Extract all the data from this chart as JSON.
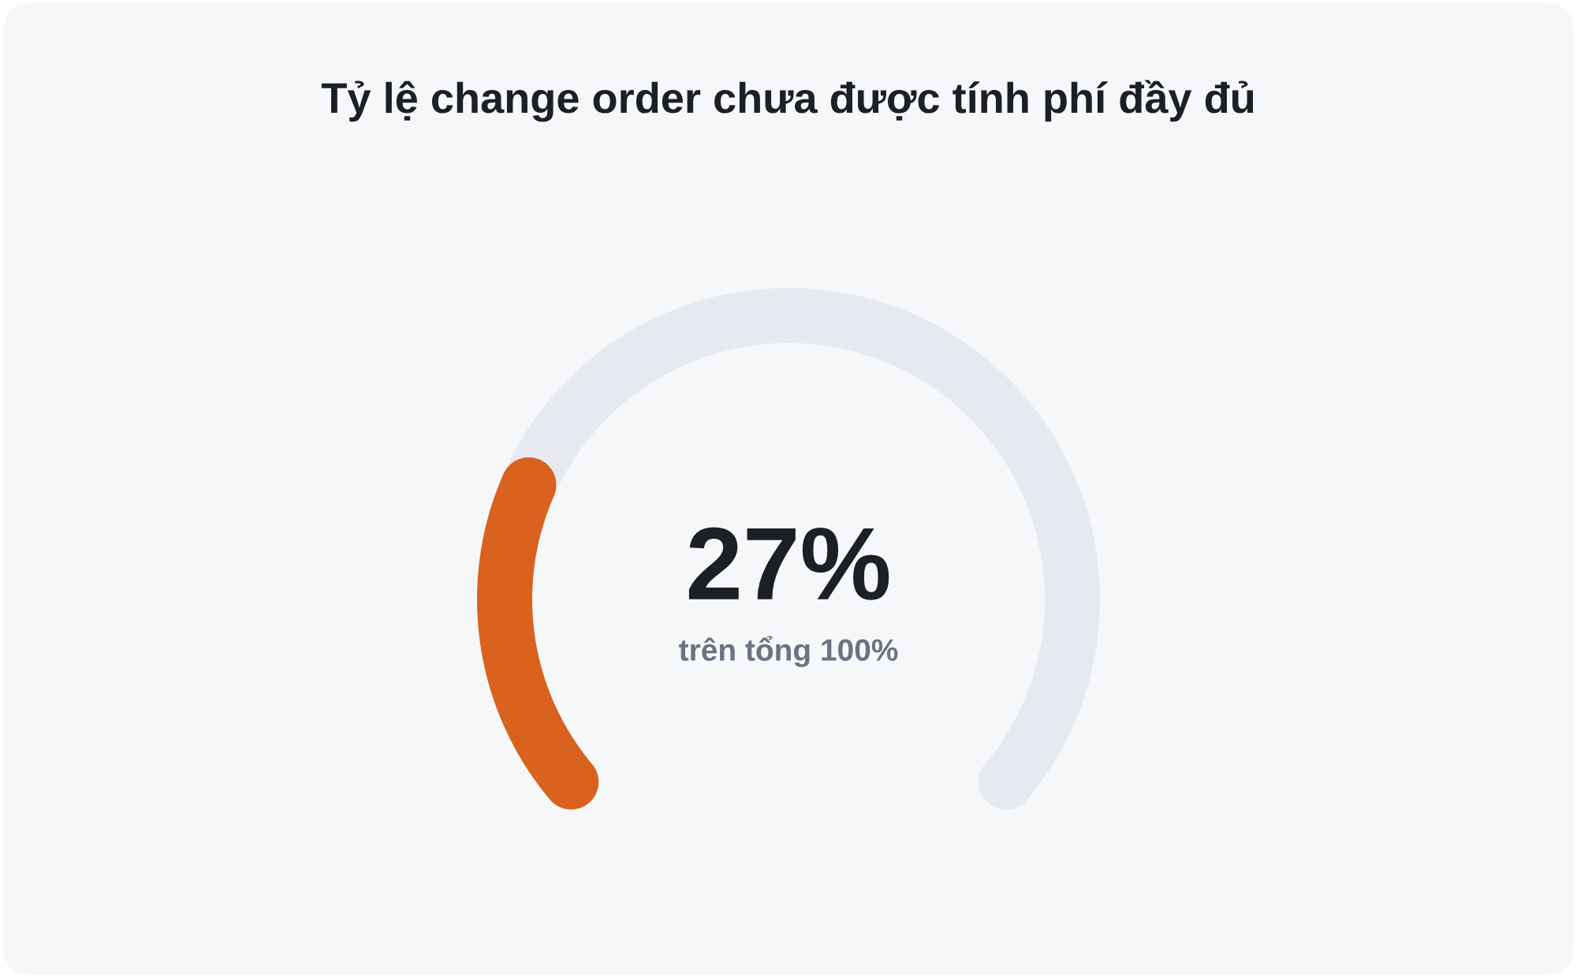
{
  "chart_data": {
    "type": "donut",
    "title": "Tỷ lệ change order chưa được tính phí đầy đủ",
    "categories": [
      null,
      null
    ],
    "values": [
      27,
      73
    ],
    "colors": [
      "#d9621f",
      "#e6eaf0"
    ],
    "annotations": [
      "27%",
      "trên tổng 100%"
    ]
  }
}
